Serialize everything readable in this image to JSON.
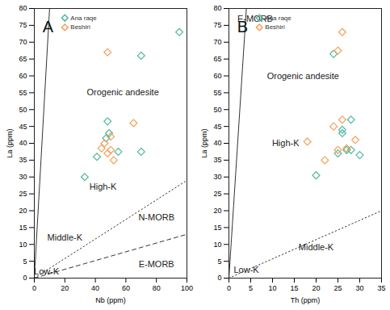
{
  "chart_data": [
    {
      "type": "scatter",
      "title": "A",
      "x_label": "Nb (ppm)",
      "y_label": "La (ppm)",
      "xlim": [
        0,
        100
      ],
      "xticks": [
        0,
        20,
        40,
        60,
        80,
        100
      ],
      "ylim": [
        0,
        80
      ],
      "yticks": [
        0,
        5,
        10,
        15,
        20,
        25,
        30,
        35,
        40,
        45,
        50,
        55,
        60,
        65,
        70,
        75,
        80
      ],
      "grid": false,
      "legend": "top-left",
      "series": [
        {
          "name": "Ana raqe",
          "color": "#4fb99f",
          "marker": "diamond",
          "x": [
            95,
            70,
            48,
            49,
            55,
            41,
            33,
            70,
            47
          ],
          "values": [
            73,
            66,
            46.5,
            43,
            37.5,
            36,
            30,
            37.5,
            41.5
          ]
        },
        {
          "name": "Beshiri",
          "color": "#f5a05a",
          "marker": "diamond",
          "x": [
            48,
            65,
            46,
            50,
            50,
            48,
            52,
            44
          ],
          "values": [
            67,
            46,
            40,
            42,
            38,
            37,
            35,
            38.5
          ]
        }
      ],
      "boundaries": [
        {
          "x": [
            0,
            10
          ],
          "y": [
            0,
            80
          ],
          "line_style": "solid"
        },
        {
          "x": [
            0,
            100
          ],
          "y": [
            0,
            29
          ],
          "line_style": "dotted"
        },
        {
          "x": [
            0,
            100
          ],
          "y": [
            0,
            13
          ],
          "line_style": "dashed"
        }
      ],
      "annotations": [
        {
          "text": "Orogenic andesite",
          "x": 58,
          "y": 55
        },
        {
          "text": "High-K",
          "x": 45,
          "y": 27
        },
        {
          "text": "Middle-K",
          "x": 20,
          "y": 12
        },
        {
          "text": "N-MORB",
          "x": 80,
          "y": 18
        },
        {
          "text": "E-MORB",
          "x": 80,
          "y": 4
        },
        {
          "text": "Low-K",
          "x": 8,
          "y": 2
        }
      ]
    },
    {
      "type": "scatter",
      "title": "B",
      "x_label": "Th (ppm)",
      "y_label": "La (ppm)",
      "xlim": [
        0,
        35
      ],
      "xticks": [
        0,
        5,
        10,
        15,
        20,
        25,
        30,
        35
      ],
      "ylim": [
        0,
        80
      ],
      "yticks": [
        0,
        5,
        10,
        15,
        20,
        25,
        30,
        35,
        40,
        45,
        50,
        55,
        60,
        65,
        70,
        75,
        80
      ],
      "grid": false,
      "legend": "top-left",
      "series": [
        {
          "name": "Ana raqe",
          "color": "#4fb99f",
          "marker": "diamond",
          "x": [
            24,
            28,
            26,
            26,
            28,
            27,
            30,
            20,
            25
          ],
          "values": [
            66.5,
            47,
            44,
            43,
            38,
            38,
            36.5,
            30.5,
            37
          ]
        },
        {
          "name": "Beshiri",
          "color": "#f5a05a",
          "marker": "diamond",
          "x": [
            25,
            26,
            18,
            22,
            24,
            26,
            25,
            29,
            27
          ],
          "values": [
            67.5,
            73,
            40.5,
            35,
            45,
            47,
            38,
            41,
            38.5
          ]
        }
      ],
      "boundaries": [
        {
          "x": [
            0,
            4
          ],
          "y": [
            0,
            80
          ],
          "line_style": "solid"
        },
        {
          "x": [
            0,
            35
          ],
          "y": [
            0,
            20
          ],
          "line_style": "dotted"
        }
      ],
      "annotations": [
        {
          "text": "Orogenic andesite",
          "x": 17,
          "y": 60
        },
        {
          "text": "High-K",
          "x": 13,
          "y": 40
        },
        {
          "text": "Middle-K",
          "x": 20,
          "y": 9
        },
        {
          "text": "Low-K",
          "x": 4,
          "y": 2.5
        },
        {
          "text": "E-MORB",
          "x": 6,
          "y": 77
        }
      ]
    }
  ]
}
